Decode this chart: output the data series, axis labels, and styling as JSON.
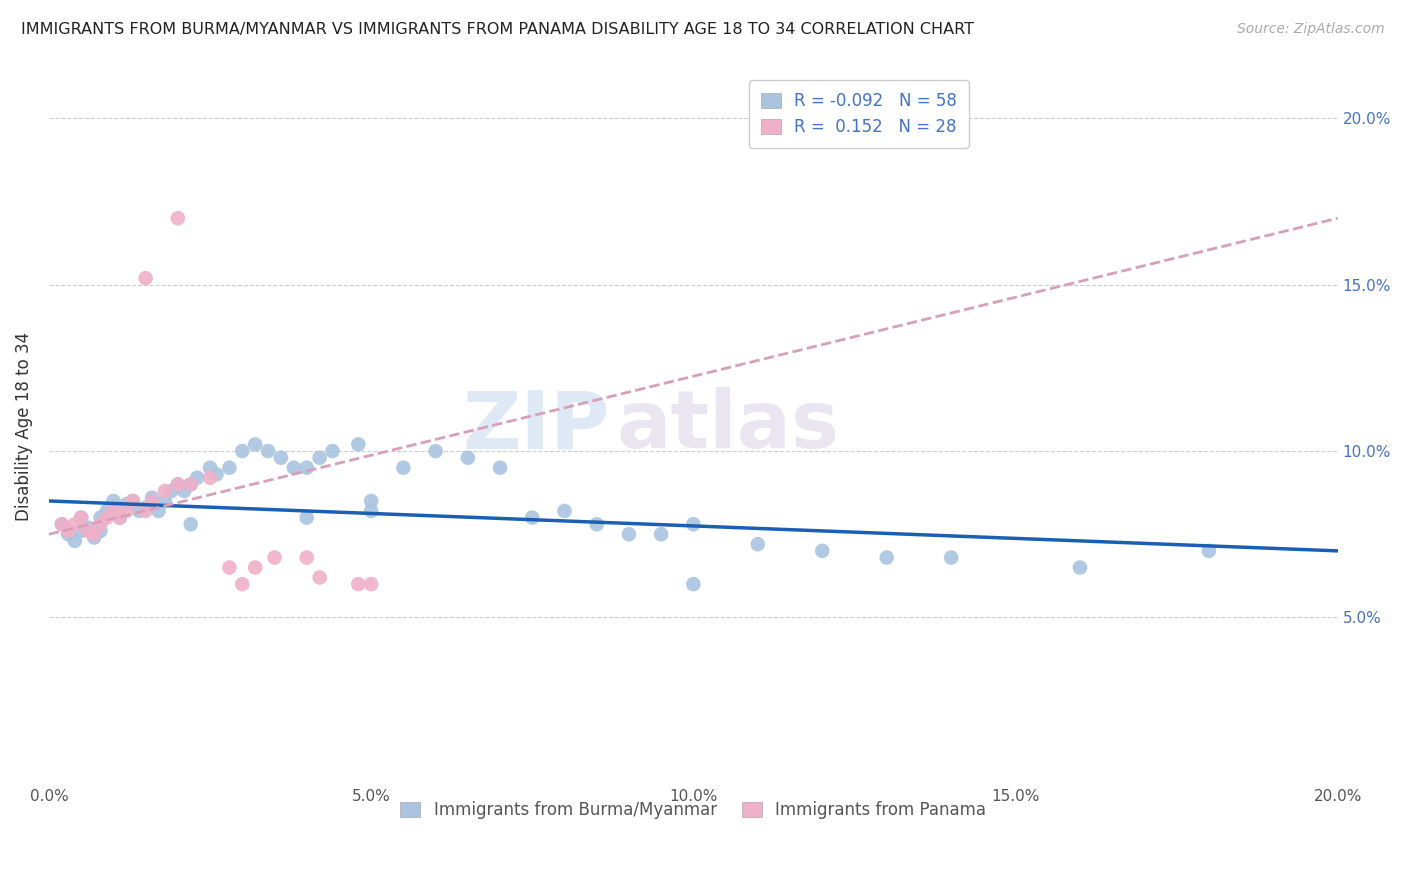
{
  "title": "IMMIGRANTS FROM BURMA/MYANMAR VS IMMIGRANTS FROM PANAMA DISABILITY AGE 18 TO 34 CORRELATION CHART",
  "source": "Source: ZipAtlas.com",
  "ylabel": "Disability Age 18 to 34",
  "xmin": 0.0,
  "xmax": 0.2,
  "ymin": 0.0,
  "ymax": 0.215,
  "yticks": [
    0.05,
    0.1,
    0.15,
    0.2
  ],
  "xticks": [
    0.0,
    0.05,
    0.1,
    0.15,
    0.2
  ],
  "xtick_labels": [
    "0.0%",
    "5.0%",
    "10.0%",
    "15.0%",
    "20.0%"
  ],
  "ytick_labels": [
    "5.0%",
    "10.0%",
    "15.0%",
    "20.0%"
  ],
  "legend_labels": [
    "Immigrants from Burma/Myanmar",
    "Immigrants from Panama"
  ],
  "legend_R_blue": "-0.092",
  "legend_N_blue": "58",
  "legend_R_pink": "0.152",
  "legend_N_pink": "28",
  "blue_color": "#aac4e0",
  "pink_color": "#f0b0c8",
  "line_blue": "#1a5fb4",
  "line_pink": "#d8a0b8",
  "watermark_part1": "ZIP",
  "watermark_part2": "atlas",
  "blue_x": [
    0.002,
    0.003,
    0.004,
    0.005,
    0.005,
    0.006,
    0.007,
    0.008,
    0.008,
    0.009,
    0.01,
    0.01,
    0.011,
    0.012,
    0.013,
    0.014,
    0.015,
    0.016,
    0.017,
    0.018,
    0.019,
    0.02,
    0.021,
    0.022,
    0.023,
    0.025,
    0.026,
    0.028,
    0.03,
    0.032,
    0.034,
    0.036,
    0.038,
    0.04,
    0.042,
    0.044,
    0.048,
    0.05,
    0.055,
    0.06,
    0.065,
    0.07,
    0.075,
    0.08,
    0.085,
    0.09,
    0.095,
    0.1,
    0.11,
    0.12,
    0.13,
    0.14,
    0.16,
    0.18,
    0.1,
    0.05,
    0.022,
    0.04
  ],
  "blue_y": [
    0.078,
    0.075,
    0.073,
    0.076,
    0.08,
    0.077,
    0.074,
    0.076,
    0.08,
    0.082,
    0.082,
    0.085,
    0.08,
    0.084,
    0.085,
    0.082,
    0.083,
    0.086,
    0.082,
    0.085,
    0.088,
    0.09,
    0.088,
    0.09,
    0.092,
    0.095,
    0.093,
    0.095,
    0.1,
    0.102,
    0.1,
    0.098,
    0.095,
    0.095,
    0.098,
    0.1,
    0.102,
    0.085,
    0.095,
    0.1,
    0.098,
    0.095,
    0.08,
    0.082,
    0.078,
    0.075,
    0.075,
    0.078,
    0.072,
    0.07,
    0.068,
    0.068,
    0.065,
    0.07,
    0.06,
    0.082,
    0.078,
    0.08
  ],
  "pink_x": [
    0.002,
    0.003,
    0.004,
    0.005,
    0.006,
    0.007,
    0.008,
    0.009,
    0.01,
    0.011,
    0.012,
    0.013,
    0.015,
    0.016,
    0.018,
    0.02,
    0.022,
    0.025,
    0.028,
    0.03,
    0.032,
    0.035,
    0.04,
    0.042,
    0.048,
    0.05,
    0.015,
    0.02
  ],
  "pink_y": [
    0.078,
    0.076,
    0.078,
    0.08,
    0.076,
    0.075,
    0.078,
    0.08,
    0.082,
    0.08,
    0.082,
    0.085,
    0.082,
    0.085,
    0.088,
    0.09,
    0.09,
    0.092,
    0.065,
    0.06,
    0.065,
    0.068,
    0.068,
    0.062,
    0.06,
    0.06,
    0.152,
    0.17
  ]
}
